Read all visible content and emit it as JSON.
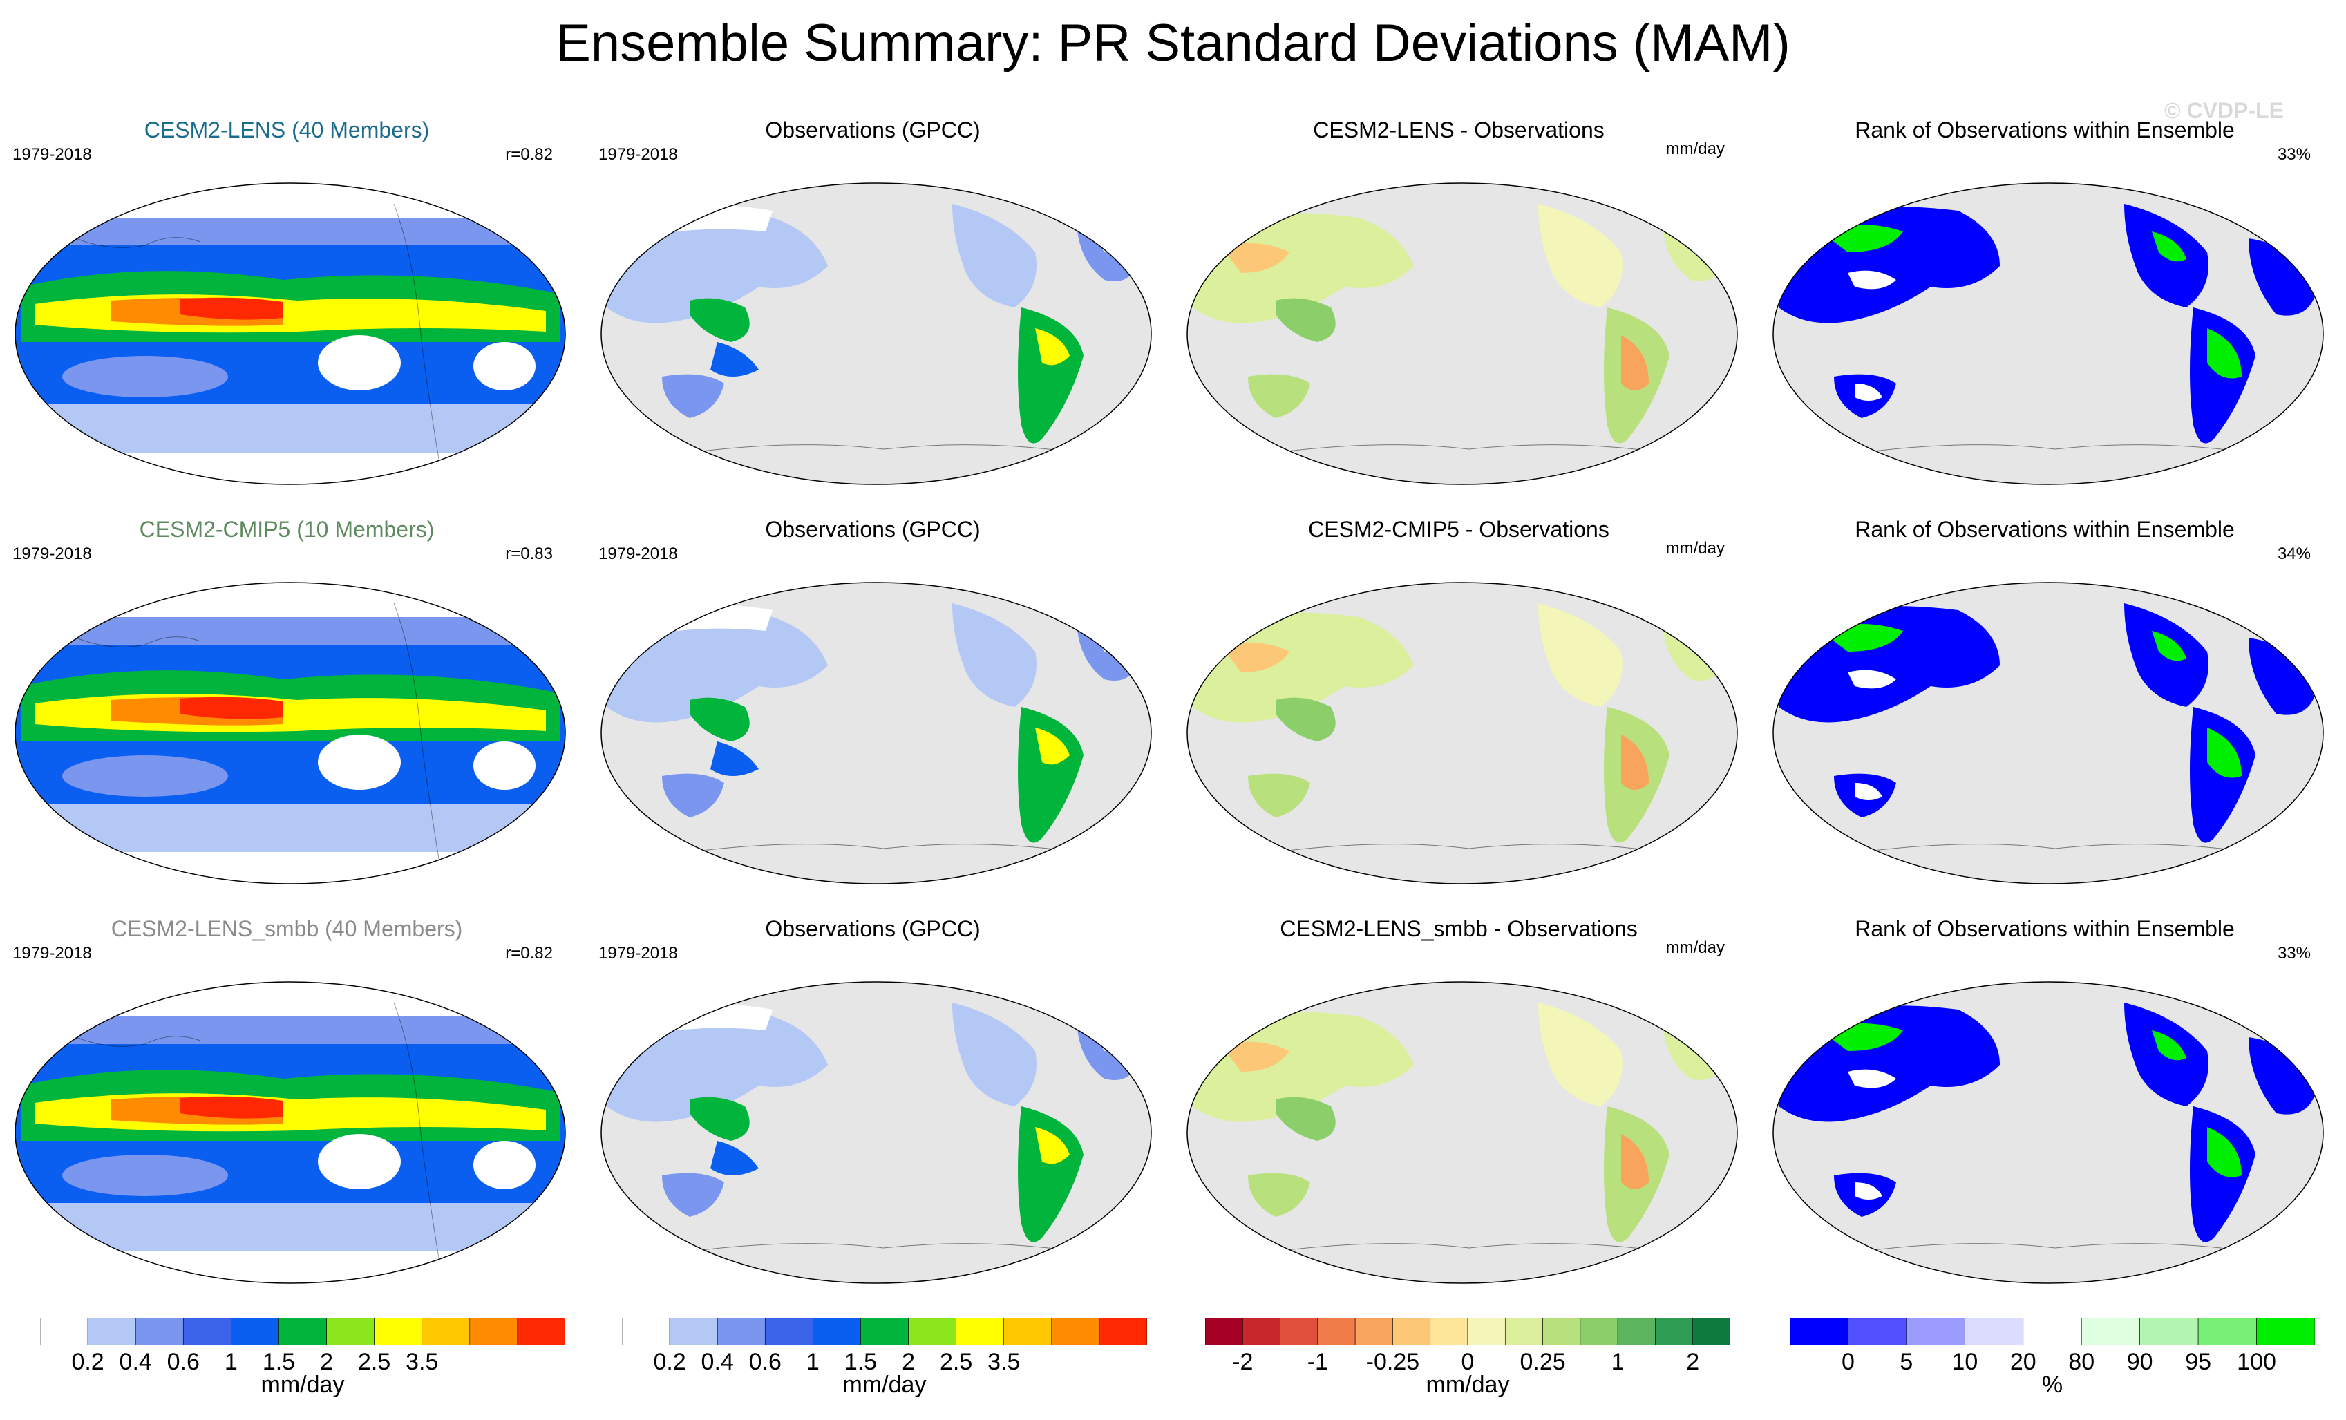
{
  "title": "Ensemble Summary: PR Standard Deviations (MAM)",
  "copyright": "© CVDP-LE",
  "rows": [
    {
      "model": {
        "title": "CESM2-LENS (40 Members)",
        "title_color": "#1a6b8c",
        "period": "1979-2018",
        "corr": "r=0.82"
      },
      "obs": {
        "title": "Observations (GPCC)",
        "period": "1979-2018"
      },
      "diff": {
        "title": "CESM2-LENS - Observations",
        "units": "mm/day"
      },
      "rank": {
        "title": "Rank of Observations within Ensemble",
        "pct": "33%"
      }
    },
    {
      "model": {
        "title": "CESM2-CMIP5 (10 Members)",
        "title_color": "#5f8a5f",
        "period": "1979-2018",
        "corr": "r=0.83"
      },
      "obs": {
        "title": "Observations (GPCC)",
        "period": "1979-2018"
      },
      "diff": {
        "title": "CESM2-CMIP5 - Observations",
        "units": "mm/day"
      },
      "rank": {
        "title": "Rank of Observations within Ensemble",
        "pct": "34%"
      }
    },
    {
      "model": {
        "title": "CESM2-LENS_smbb (40 Members)",
        "title_color": "#8a8a8a",
        "period": "1979-2018",
        "corr": "r=0.82"
      },
      "obs": {
        "title": "Observations (GPCC)",
        "period": "1979-2018"
      },
      "diff": {
        "title": "CESM2-LENS_smbb - Observations",
        "units": "mm/day"
      },
      "rank": {
        "title": "Rank of Observations within Ensemble",
        "pct": "33%"
      }
    }
  ],
  "colorbars": [
    {
      "name": "sd",
      "colors": [
        "#ffffff",
        "#b4c8f5",
        "#7a96ee",
        "#3b64eb",
        "#0a5ef0",
        "#00b43c",
        "#8ce61e",
        "#ffff00",
        "#ffc800",
        "#ff8c00",
        "#ff2800"
      ],
      "ticks": [
        "0.2",
        "0.4",
        "0.6",
        "1",
        "1.5",
        "2",
        "2.5",
        "3.5"
      ],
      "units": "mm/day"
    },
    {
      "name": "sd-obs",
      "colors": [
        "#ffffff",
        "#b4c8f5",
        "#7a96ee",
        "#3b64eb",
        "#0a5ef0",
        "#00b43c",
        "#8ce61e",
        "#ffff00",
        "#ffc800",
        "#ff8c00",
        "#ff2800"
      ],
      "ticks": [
        "0.2",
        "0.4",
        "0.6",
        "1",
        "1.5",
        "2",
        "2.5",
        "3.5"
      ],
      "units": "mm/day"
    },
    {
      "name": "diff",
      "colors": [
        "#a50026",
        "#c8282c",
        "#e0503a",
        "#f07c4a",
        "#f8a45c",
        "#fcc878",
        "#fde69a",
        "#f3f6b8",
        "#dcef9c",
        "#b8e07c",
        "#8cce6a",
        "#5cb45e",
        "#2e9c52",
        "#0e7a3e"
      ],
      "ticks": [
        "-2",
        "-1",
        "-0.25",
        "0",
        "0.25",
        "1",
        "2"
      ],
      "units": "mm/day"
    },
    {
      "name": "rank",
      "colors": [
        "#0000ff",
        "#5050ff",
        "#9c9cff",
        "#dcdcff",
        "#ffffff",
        "#e0ffe0",
        "#b4f5b4",
        "#78f078",
        "#00ee00"
      ],
      "ticks": [
        "0",
        "5",
        "10",
        "20",
        "80",
        "90",
        "95",
        "100"
      ],
      "units": "%"
    }
  ]
}
